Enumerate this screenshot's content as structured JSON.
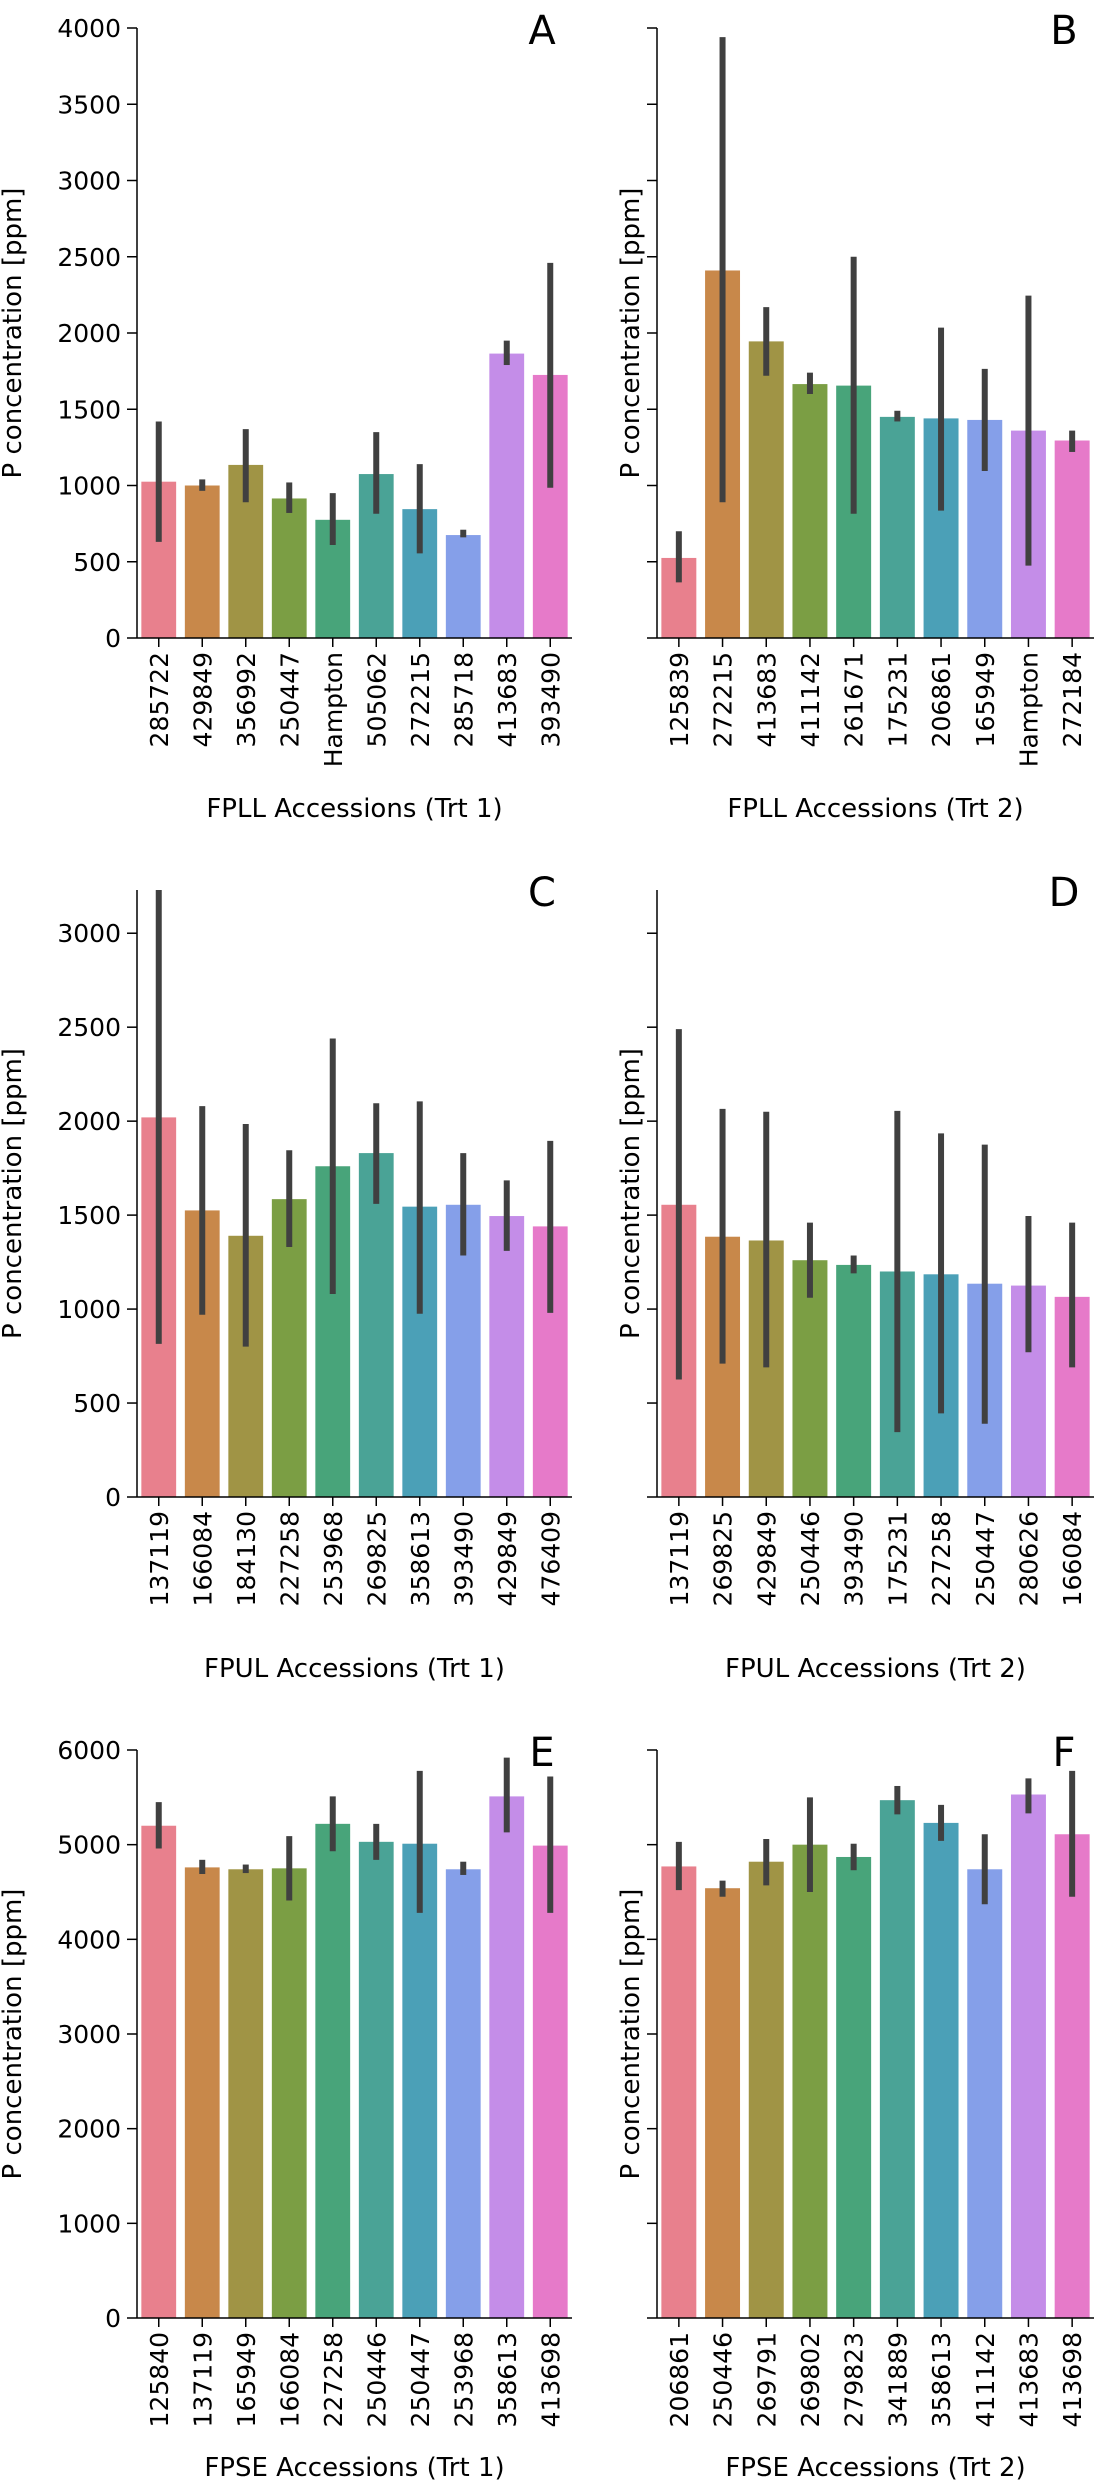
{
  "chart_data": [
    {
      "panel": "A",
      "type": "bar",
      "xlabel": "FPLL Accessions (Trt 1)",
      "ylabel": "P concentration [ppm]",
      "ylim": [
        0,
        4000
      ],
      "yticks": [
        0,
        500,
        1000,
        1500,
        2000,
        2500,
        3000,
        3500,
        4000
      ],
      "show_ytick_labels": true,
      "categories": [
        "285722",
        "429849",
        "356992",
        "250447",
        "Hampton",
        "505062",
        "272215",
        "285718",
        "413683",
        "393490"
      ],
      "values": [
        1025,
        1000,
        1135,
        915,
        775,
        1075,
        845,
        675,
        1865,
        1725
      ],
      "error_low": [
        630,
        965,
        890,
        820,
        610,
        815,
        555,
        660,
        1790,
        985
      ],
      "error_high": [
        1420,
        1040,
        1370,
        1020,
        950,
        1350,
        1140,
        710,
        1950,
        2460
      ]
    },
    {
      "panel": "B",
      "type": "bar",
      "xlabel": "FPLL Accessions (Trt 2)",
      "ylabel": "P concentration [ppm]",
      "ylim": [
        0,
        4000
      ],
      "yticks": [
        0,
        500,
        1000,
        1500,
        2000,
        2500,
        3000,
        3500,
        4000
      ],
      "show_ytick_labels": false,
      "categories": [
        "125839",
        "272215",
        "413683",
        "411142",
        "261671",
        "175231",
        "206861",
        "165949",
        "Hampton",
        "272184"
      ],
      "values": [
        525,
        2410,
        1945,
        1665,
        1655,
        1450,
        1440,
        1430,
        1360,
        1295
      ],
      "error_low": [
        365,
        890,
        1720,
        1600,
        815,
        1420,
        835,
        1095,
        475,
        1220
      ],
      "error_high": [
        700,
        3940,
        2170,
        1740,
        2500,
        1490,
        2035,
        1765,
        2245,
        1360
      ]
    },
    {
      "panel": "C",
      "type": "bar",
      "xlabel": "FPUL Accessions (Trt 1)",
      "ylabel": "P concentration [ppm]",
      "ylim": [
        0,
        3230
      ],
      "yticks": [
        0,
        500,
        1000,
        1500,
        2000,
        2500,
        3000
      ],
      "show_ytick_labels": true,
      "categories": [
        "137119",
        "166084",
        "184130",
        "227258",
        "253968",
        "269825",
        "358613",
        "393490",
        "429849",
        "476409"
      ],
      "values": [
        2020,
        1525,
        1390,
        1585,
        1760,
        1830,
        1545,
        1555,
        1495,
        1440
      ],
      "error_low": [
        815,
        970,
        800,
        1330,
        1080,
        1560,
        975,
        1285,
        1310,
        980
      ],
      "error_high": [
        3230,
        2080,
        1985,
        1845,
        2440,
        2095,
        2105,
        1830,
        1685,
        1895
      ]
    },
    {
      "panel": "D",
      "type": "bar",
      "xlabel": "FPUL Accessions (Trt 2)",
      "ylabel": "P concentration [ppm]",
      "ylim": [
        0,
        3230
      ],
      "yticks": [
        0,
        500,
        1000,
        1500,
        2000,
        2500,
        3000
      ],
      "show_ytick_labels": false,
      "categories": [
        "137119",
        "269825",
        "429849",
        "250446",
        "393490",
        "175231",
        "227258",
        "250447",
        "280626",
        "166084"
      ],
      "values": [
        1555,
        1385,
        1365,
        1260,
        1235,
        1200,
        1185,
        1135,
        1125,
        1065
      ],
      "error_low": [
        625,
        710,
        690,
        1060,
        1190,
        345,
        445,
        390,
        770,
        690
      ],
      "error_high": [
        2490,
        2065,
        2050,
        1460,
        1285,
        2055,
        1935,
        1875,
        1495,
        1460
      ]
    },
    {
      "panel": "E",
      "type": "bar",
      "xlabel": "FPSE Accessions (Trt 1)",
      "ylabel": "P concentration [ppm]",
      "ylim": [
        0,
        6000
      ],
      "yticks": [
        0,
        1000,
        2000,
        3000,
        4000,
        5000,
        6000
      ],
      "show_ytick_labels": true,
      "categories": [
        "125840",
        "137119",
        "165949",
        "166084",
        "227258",
        "250446",
        "250447",
        "253968",
        "358613",
        "413698"
      ],
      "values": [
        5200,
        4760,
        4740,
        4750,
        5220,
        5030,
        5010,
        4740,
        5510,
        4990
      ],
      "error_low": [
        4960,
        4690,
        4700,
        4410,
        4930,
        4840,
        4280,
        4680,
        5130,
        4280
      ],
      "error_high": [
        5450,
        4840,
        4790,
        5090,
        5510,
        5220,
        5780,
        4820,
        5920,
        5720
      ]
    },
    {
      "panel": "F",
      "type": "bar",
      "xlabel": "FPSE Accessions (Trt 2)",
      "ylabel": "P concentration [ppm]",
      "ylim": [
        0,
        6000
      ],
      "yticks": [
        0,
        1000,
        2000,
        3000,
        4000,
        5000,
        6000
      ],
      "show_ytick_labels": false,
      "categories": [
        "206861",
        "250446",
        "269791",
        "269802",
        "279823",
        "341889",
        "358613",
        "411142",
        "413683",
        "413698"
      ],
      "values": [
        4770,
        4540,
        4820,
        5000,
        4870,
        5470,
        5230,
        4740,
        5530,
        5110
      ],
      "error_low": [
        4520,
        4450,
        4570,
        4500,
        4730,
        5320,
        5040,
        4370,
        5330,
        4450
      ],
      "error_high": [
        5030,
        4620,
        5060,
        5500,
        5010,
        5620,
        5420,
        5110,
        5700,
        5780
      ]
    }
  ],
  "style": {
    "bar_colors": [
      "#e8808d",
      "#c8884a",
      "#a09445",
      "#7b9e44",
      "#48a47a",
      "#4aa396",
      "#4ba0b7",
      "#859fe9",
      "#c48de8",
      "#e67ac9"
    ],
    "error_color": "#404040",
    "axis_color": "#000000"
  }
}
